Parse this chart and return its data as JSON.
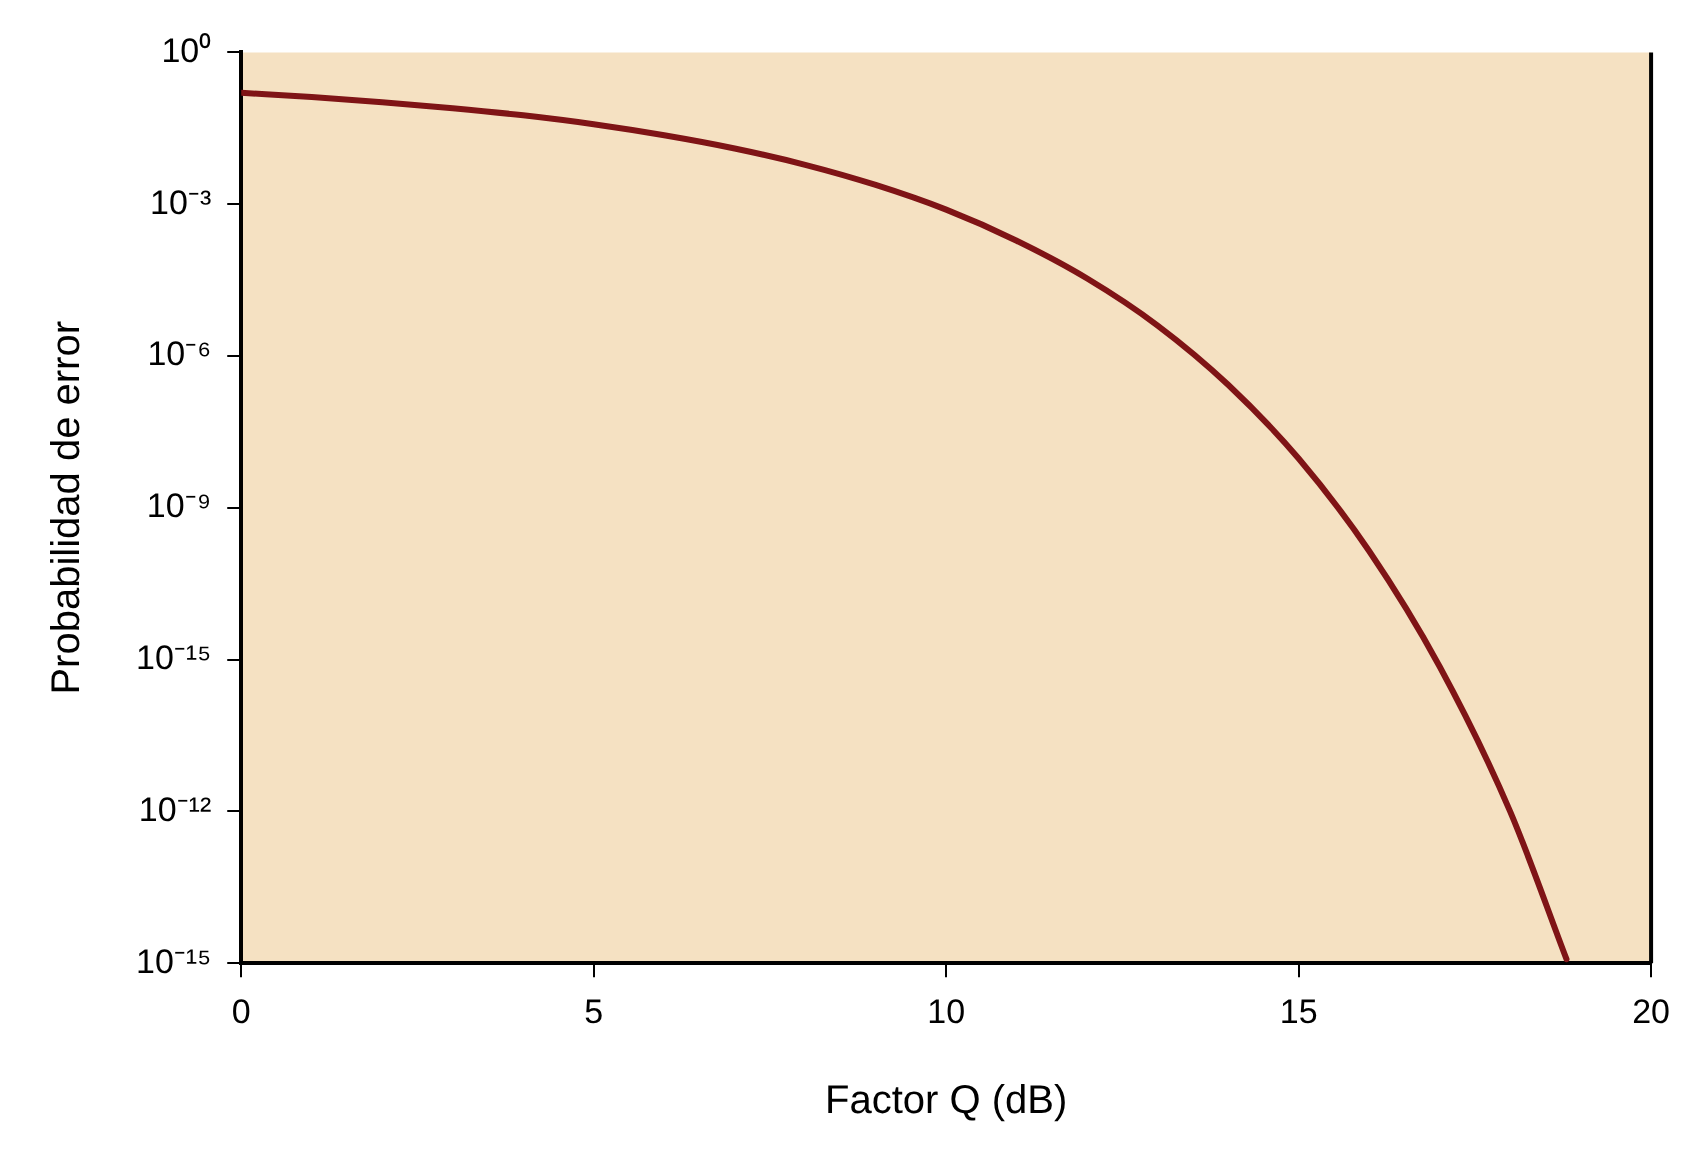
{
  "chart_data": {
    "type": "line",
    "xlabel": "Factor Q (dB)",
    "ylabel": "Probabilidad de error",
    "x": [
      0,
      1,
      2,
      3,
      4,
      5,
      6,
      7,
      8,
      9,
      10,
      11,
      12,
      13,
      14,
      15,
      16,
      17,
      18,
      18.8
    ],
    "series": [
      {
        "color": "#7f1416",
        "values": [
          0.159,
          0.131,
          0.104,
          0.079,
          0.057,
          0.038,
          0.023,
          0.0126,
          0.006,
          0.0024,
          0.00078,
          0.00019,
          3.4e-05,
          4e-06,
          2.7e-07,
          9.4e-09,
          1.4e-10,
          7.3e-13,
          1e-15,
          1.2e-18
        ]
      }
    ],
    "xlim": [
      0,
      20
    ],
    "xticks": [
      0,
      5,
      10,
      15,
      20
    ],
    "ylim": [
      1e-18,
      1
    ],
    "yticks": [
      {
        "value": 1,
        "label": "10⁰"
      },
      {
        "value": 0.001,
        "label": "10⁻³"
      },
      {
        "value": 1e-06,
        "label": "10⁻⁶"
      },
      {
        "value": 1e-09,
        "label": "10⁻⁹"
      },
      {
        "value": 1e-12,
        "label": "10⁻¹⁵"
      },
      {
        "value": 1e-15,
        "label": "10⁻¹²"
      },
      {
        "value": 1e-18,
        "label": "10⁻¹⁵"
      }
    ],
    "log": "y",
    "grid": false,
    "legend": false,
    "marker": "none",
    "line_style": "solid"
  }
}
